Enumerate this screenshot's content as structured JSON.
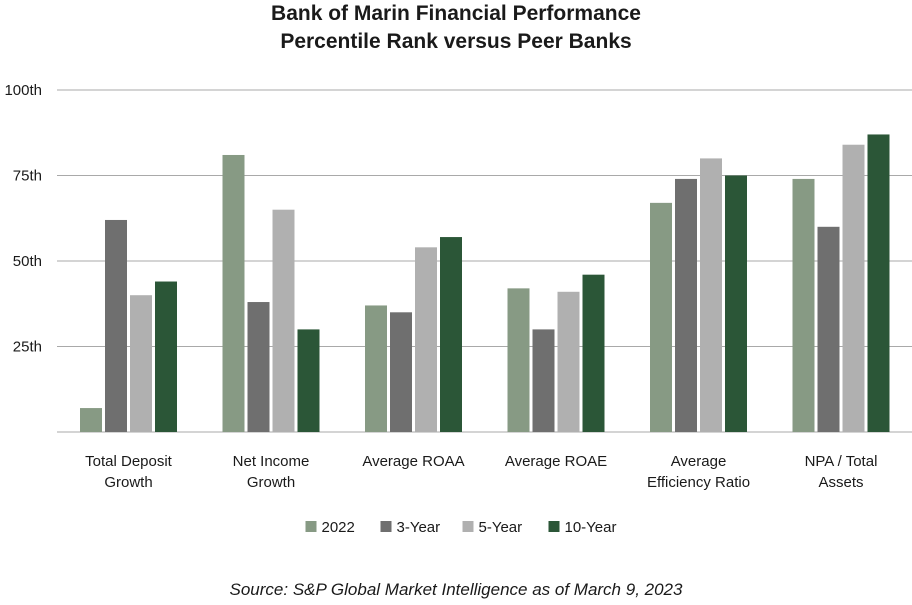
{
  "chart_data": {
    "type": "bar",
    "title": "Bank of Marin Financial Performance",
    "subtitle": "Percentile Rank versus Peer Banks",
    "categories": [
      [
        "Total Deposit",
        "Growth"
      ],
      [
        "Net Income",
        "Growth"
      ],
      [
        "Average ROAA"
      ],
      [
        "Average ROAE"
      ],
      [
        "Average",
        "Efficiency Ratio"
      ],
      [
        "NPA / Total",
        "Assets"
      ]
    ],
    "series": [
      {
        "name": "2022",
        "color": "#879a84",
        "values": [
          7,
          81,
          37,
          42,
          67,
          74
        ]
      },
      {
        "name": "3-Year",
        "color": "#6f6f6f",
        "values": [
          62,
          38,
          35,
          30,
          74,
          60
        ]
      },
      {
        "name": "5-Year",
        "color": "#b0b0b0",
        "values": [
          40,
          65,
          54,
          41,
          80,
          84
        ]
      },
      {
        "name": "10-Year",
        "color": "#2b5637",
        "values": [
          44,
          30,
          57,
          46,
          75,
          87
        ]
      }
    ],
    "ylim": [
      0,
      100
    ],
    "yticks": [
      25,
      50,
      75,
      100
    ],
    "ytick_labels": [
      "25th",
      "50th",
      "75th",
      "100th"
    ],
    "grid": true,
    "legend": "bottom-center",
    "xlabel": "",
    "ylabel": ""
  },
  "source": "Source: S&P Global Market Intelligence as of March 9, 2023"
}
